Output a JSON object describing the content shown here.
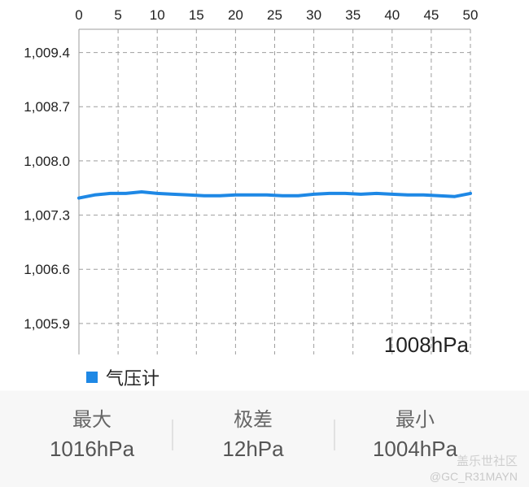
{
  "chart_data": {
    "type": "line",
    "x_ticks": [
      "0",
      "5",
      "10",
      "15",
      "20",
      "25",
      "30",
      "35",
      "40",
      "45",
      "50"
    ],
    "xlim": [
      0,
      50
    ],
    "y_ticks": [
      "1,009.4",
      "1,008.7",
      "1,008.0",
      "1,007.3",
      "1,006.6",
      "1,005.9"
    ],
    "ylim": [
      1005.5,
      1009.7
    ],
    "grid": true,
    "unit_label": "1008hPa",
    "series": [
      {
        "name": "气压计",
        "color": "#1e88e5",
        "x": [
          0,
          2,
          4,
          6,
          8,
          10,
          12,
          14,
          16,
          18,
          20,
          22,
          24,
          26,
          28,
          30,
          32,
          34,
          36,
          38,
          40,
          42,
          44,
          46,
          48,
          50
        ],
        "y": [
          1007.52,
          1007.56,
          1007.58,
          1007.58,
          1007.6,
          1007.58,
          1007.57,
          1007.56,
          1007.55,
          1007.55,
          1007.56,
          1007.56,
          1007.56,
          1007.55,
          1007.55,
          1007.57,
          1007.58,
          1007.58,
          1007.57,
          1007.58,
          1007.57,
          1007.56,
          1007.56,
          1007.55,
          1007.54,
          1007.58
        ]
      }
    ]
  },
  "legend": {
    "label": "气压计",
    "color": "#1e88e5"
  },
  "stats": {
    "max_label": "最大",
    "max_value": "1016hPa",
    "range_label": "极差",
    "range_value": "12hPa",
    "min_label": "最小",
    "min_value": "1004hPa"
  },
  "watermark": {
    "title": "盖乐世社区",
    "user": "@GC_R31MAYN"
  }
}
